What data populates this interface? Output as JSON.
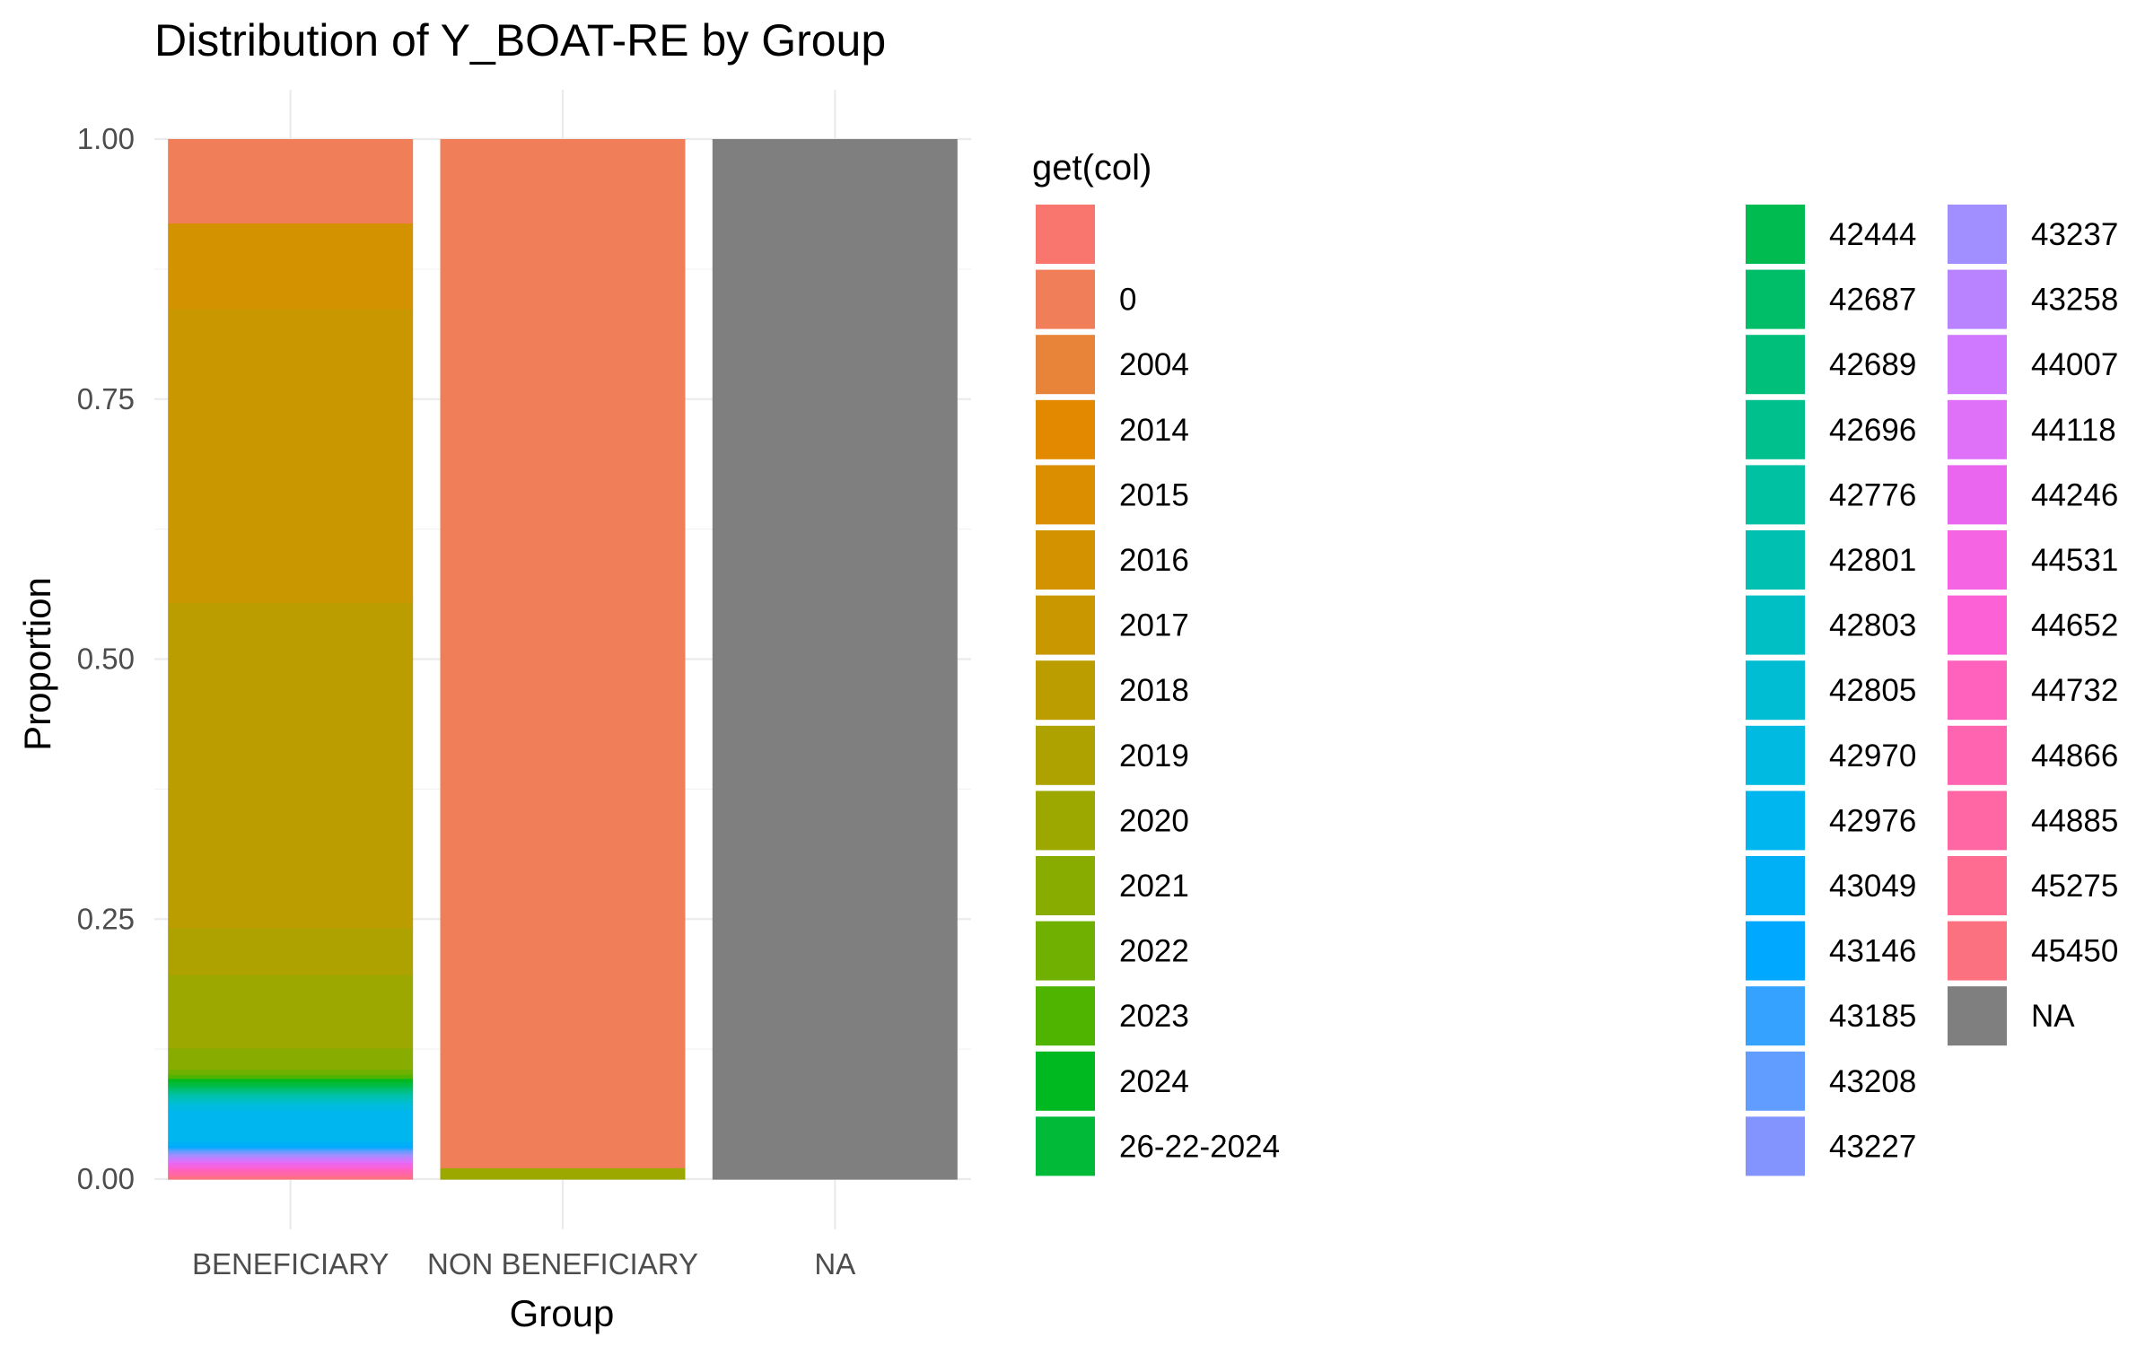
{
  "chart_data": {
    "type": "bar",
    "stacked": true,
    "normalized": true,
    "title": "Distribution of Y_BOAT-RE by Group",
    "xlabel": "Group",
    "ylabel": "Proportion",
    "ylim": [
      0,
      1
    ],
    "yticks": [
      "0.00",
      "0.25",
      "0.50",
      "0.75",
      "1.00"
    ],
    "grid": true,
    "legend_position": "right",
    "legend_title": "get(col)",
    "categories": [
      "BENEFICIARY",
      "NON BENEFICIARY",
      "NA"
    ],
    "series": [
      {
        "name": "",
        "color": "#F8766D",
        "values": [
          0,
          0,
          0
        ]
      },
      {
        "name": "0",
        "color": "#F07F59",
        "values": [
          0.08,
          0.989,
          0
        ]
      },
      {
        "name": "2004",
        "color": "#E8833A",
        "values": [
          0,
          0,
          0
        ]
      },
      {
        "name": "2014",
        "color": "#E38900",
        "values": [
          0,
          0,
          0
        ]
      },
      {
        "name": "2015",
        "color": "#DB8E00",
        "values": [
          0,
          0,
          0
        ]
      },
      {
        "name": "2016",
        "color": "#D39200",
        "values": [
          0.082,
          0,
          0
        ]
      },
      {
        "name": "2017",
        "color": "#C99800",
        "values": [
          0.28,
          0,
          0
        ]
      },
      {
        "name": "2018",
        "color": "#BB9D00",
        "values": [
          0.31,
          0,
          0
        ]
      },
      {
        "name": "2019",
        "color": "#ADA200",
        "values": [
          0.045,
          0,
          0
        ]
      },
      {
        "name": "2020",
        "color": "#9CA700",
        "values": [
          0.07,
          0.011,
          0
        ]
      },
      {
        "name": "2021",
        "color": "#88AC00",
        "values": [
          0.02,
          0,
          0
        ]
      },
      {
        "name": "2022",
        "color": "#70B000",
        "values": [
          0.005,
          0,
          0
        ]
      },
      {
        "name": "2023",
        "color": "#4FB400",
        "values": [
          0.004,
          0,
          0
        ]
      },
      {
        "name": "2024",
        "color": "#00B81F",
        "values": [
          0.003,
          0,
          0
        ]
      },
      {
        "name": "26-22-2024",
        "color": "#00BA38",
        "values": [
          0.003,
          0,
          0
        ]
      },
      {
        "name": "42444",
        "color": "#00BC50",
        "values": [
          0.002,
          0,
          0
        ]
      },
      {
        "name": "42687",
        "color": "#00BE67",
        "values": [
          0.002,
          0,
          0
        ]
      },
      {
        "name": "42689",
        "color": "#00BF7B",
        "values": [
          0.002,
          0,
          0
        ]
      },
      {
        "name": "42696",
        "color": "#00C08E",
        "values": [
          0.002,
          0,
          0
        ]
      },
      {
        "name": "42776",
        "color": "#00C1A1",
        "values": [
          0.002,
          0,
          0
        ]
      },
      {
        "name": "42801",
        "color": "#00C0B2",
        "values": [
          0.003,
          0,
          0
        ]
      },
      {
        "name": "42803",
        "color": "#00BFC4",
        "values": [
          0.003,
          0,
          0
        ]
      },
      {
        "name": "42805",
        "color": "#00BDD4",
        "values": [
          0.003,
          0,
          0
        ]
      },
      {
        "name": "42970",
        "color": "#00BAE2",
        "values": [
          0.005,
          0,
          0
        ]
      },
      {
        "name": "42976",
        "color": "#00B6EE",
        "values": [
          0.03,
          0,
          0
        ]
      },
      {
        "name": "43049",
        "color": "#00B0F6",
        "values": [
          0.004,
          0,
          0
        ]
      },
      {
        "name": "43146",
        "color": "#00A9FF",
        "values": [
          0.002,
          0,
          0
        ]
      },
      {
        "name": "43185",
        "color": "#35A2FF",
        "values": [
          0.002,
          0,
          0
        ]
      },
      {
        "name": "43208",
        "color": "#619CFF",
        "values": [
          0.002,
          0,
          0
        ]
      },
      {
        "name": "43227",
        "color": "#8494FF",
        "values": [
          0.002,
          0,
          0
        ]
      },
      {
        "name": "43237",
        "color": "#A18FFF",
        "values": [
          0.002,
          0,
          0
        ]
      },
      {
        "name": "43258",
        "color": "#B983FF",
        "values": [
          0.002,
          0,
          0
        ]
      },
      {
        "name": "44007",
        "color": "#CE79FF",
        "values": [
          0.002,
          0,
          0
        ]
      },
      {
        "name": "44118",
        "color": "#DF70F8",
        "values": [
          0.002,
          0,
          0
        ]
      },
      {
        "name": "44246",
        "color": "#EB66EF",
        "values": [
          0.002,
          0,
          0
        ]
      },
      {
        "name": "44531",
        "color": "#F564E3",
        "values": [
          0.002,
          0,
          0
        ]
      },
      {
        "name": "44652",
        "color": "#FC61D5",
        "values": [
          0.002,
          0,
          0
        ]
      },
      {
        "name": "44732",
        "color": "#FF62BC",
        "values": [
          0.002,
          0,
          0
        ]
      },
      {
        "name": "44866",
        "color": "#FF64B0",
        "values": [
          0.002,
          0,
          0
        ]
      },
      {
        "name": "44885",
        "color": "#FF67A4",
        "values": [
          0.002,
          0,
          0
        ]
      },
      {
        "name": "45275",
        "color": "#FF6C91",
        "values": [
          0.002,
          0,
          0
        ]
      },
      {
        "name": "45450",
        "color": "#FC717F",
        "values": [
          0.002,
          0,
          0
        ]
      },
      {
        "name": "NA",
        "color": "#7F7F7F",
        "values": [
          0,
          0,
          1
        ]
      }
    ]
  }
}
